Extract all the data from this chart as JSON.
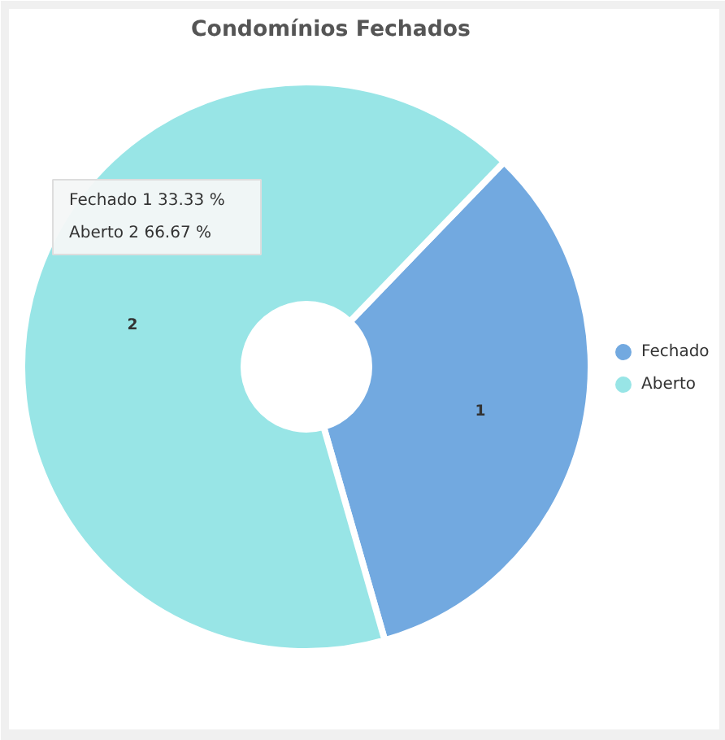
{
  "chart_data": {
    "type": "donut",
    "title": "Condomínios Fechados",
    "categories": [
      "Fechado",
      "Aberto"
    ],
    "values": [
      1,
      2
    ],
    "colors": [
      "#72a9e0",
      "#98e5e6"
    ],
    "data_labels": true,
    "legend": "right",
    "annotations": [
      "Fechado  1  33.33 %",
      "Aberto    2  66.67 %"
    ]
  }
}
